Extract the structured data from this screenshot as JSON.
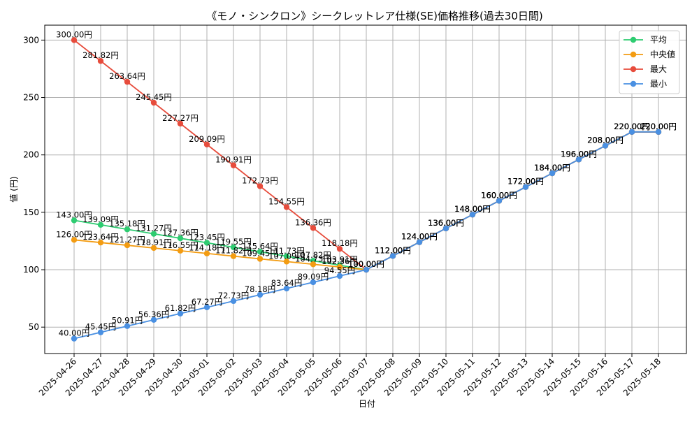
{
  "chart_data": {
    "type": "line",
    "title": "《モノ・シンクロン》シークレットレア仕様(SE)価格推移(過去30日間)",
    "xlabel": "日付",
    "ylabel": "値 (円)",
    "ylim": [
      27,
      313
    ],
    "yticks": [
      50,
      100,
      150,
      200,
      250,
      300
    ],
    "grid": true,
    "legend_position": "top-right",
    "label_suffix": "円",
    "categories": [
      "2025-04-26",
      "2025-04-27",
      "2025-04-28",
      "2025-04-29",
      "2025-04-30",
      "2025-05-01",
      "2025-05-02",
      "2025-05-03",
      "2025-05-04",
      "2025-05-05",
      "2025-05-06",
      "2025-05-07",
      "2025-05-08",
      "2025-05-09",
      "2025-05-10",
      "2025-05-11",
      "2025-05-12",
      "2025-05-13",
      "2025-05-14",
      "2025-05-15",
      "2025-05-16",
      "2025-05-17",
      "2025-05-18"
    ],
    "series": [
      {
        "name": "平均",
        "color": "#2ecc71",
        "values": [
          143.0,
          139.09,
          135.18,
          131.27,
          127.36,
          123.45,
          119.55,
          115.64,
          111.73,
          107.82,
          103.91,
          100.0,
          112.0,
          124.0,
          136.0,
          148.0,
          160.0,
          172.0,
          184.0,
          196.0,
          208.0,
          220.0,
          220.0
        ]
      },
      {
        "name": "中央値",
        "color": "#f39c12",
        "values": [
          126.0,
          123.64,
          121.27,
          118.91,
          116.55,
          114.18,
          111.82,
          109.45,
          107.09,
          104.73,
          102.36,
          100.0,
          112.0,
          124.0,
          136.0,
          148.0,
          160.0,
          172.0,
          184.0,
          196.0,
          208.0,
          220.0,
          220.0
        ]
      },
      {
        "name": "最大",
        "color": "#e74c3c",
        "values": [
          300.0,
          281.82,
          263.64,
          245.45,
          227.27,
          209.09,
          190.91,
          172.73,
          154.55,
          136.36,
          118.18,
          100.0,
          112.0,
          124.0,
          136.0,
          148.0,
          160.0,
          172.0,
          184.0,
          196.0,
          208.0,
          220.0,
          220.0
        ]
      },
      {
        "name": "最小",
        "color": "#4a90e2",
        "values": [
          40.0,
          45.45,
          50.91,
          56.36,
          61.82,
          67.27,
          72.73,
          78.18,
          83.64,
          89.09,
          94.55,
          100.0,
          112.0,
          124.0,
          136.0,
          148.0,
          160.0,
          172.0,
          184.0,
          196.0,
          208.0,
          220.0,
          220.0
        ]
      }
    ]
  }
}
